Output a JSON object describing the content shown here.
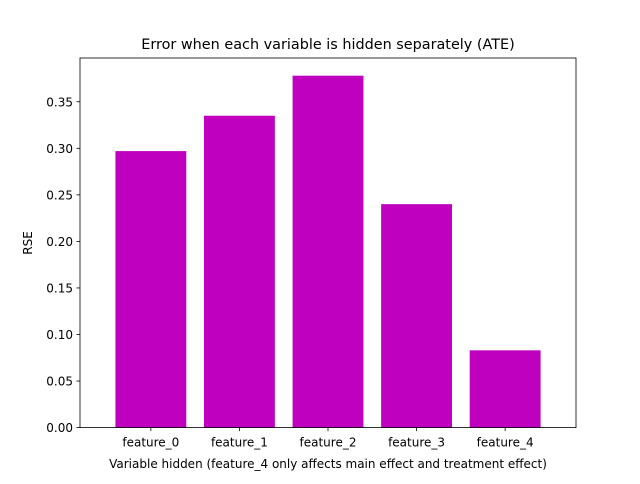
{
  "chart_data": {
    "type": "bar",
    "title": "Error when each variable is hidden separately (ATE)",
    "xlabel": "Variable hidden (feature_4 only affects main effect and treatment effect)",
    "ylabel": "RSE",
    "categories": [
      "feature_0",
      "feature_1",
      "feature_2",
      "feature_3",
      "feature_4"
    ],
    "values": [
      0.297,
      0.335,
      0.378,
      0.24,
      0.083
    ],
    "ylim": [
      0,
      0.397
    ],
    "yticks": [
      0.0,
      0.05,
      0.1,
      0.15,
      0.2,
      0.25,
      0.3,
      0.35
    ],
    "ytick_labels": [
      "0.00",
      "0.05",
      "0.10",
      "0.15",
      "0.20",
      "0.25",
      "0.30",
      "0.35"
    ],
    "bar_color": "#bf00bf",
    "grid": false,
    "legend": null
  }
}
